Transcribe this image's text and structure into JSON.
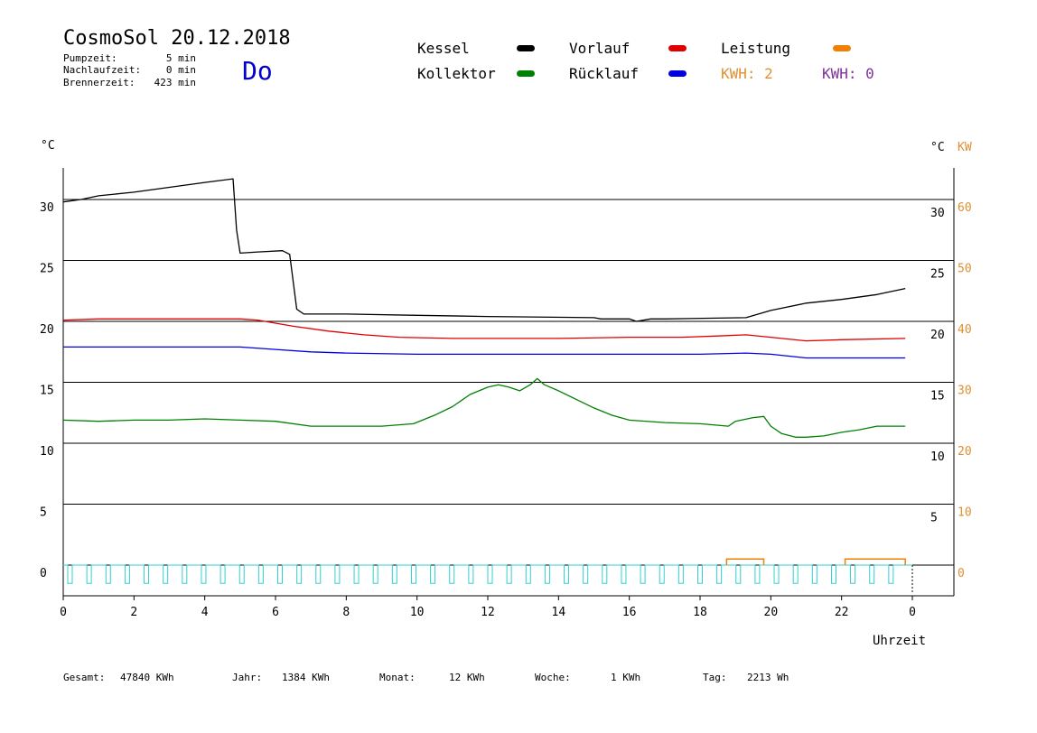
{
  "header": {
    "title": "CosmoSol 20.12.2018",
    "weekday": "Do",
    "stats": [
      {
        "label": "Pumpzeit:",
        "value": "5 min"
      },
      {
        "label": "Nachlaufzeit:",
        "value": "0 min"
      },
      {
        "label": "Brennerzeit:",
        "value": "423 min"
      }
    ]
  },
  "legend": {
    "items": [
      {
        "name": "Kessel",
        "color": "#000000"
      },
      {
        "name": "Vorlauf",
        "color": "#e00000"
      },
      {
        "name": "Leistung",
        "color": "#f08000"
      },
      {
        "name": "Kollektor",
        "color": "#008000"
      },
      {
        "name": "Rücklauf",
        "color": "#0000e0"
      }
    ],
    "kwh1": {
      "text": "KWH: 2",
      "color": "#e09030"
    },
    "kwh2": {
      "text": "KWH: 0",
      "color": "#8030a0"
    }
  },
  "chart_data": {
    "type": "line",
    "x_range": [
      0,
      24
    ],
    "x_ticks": [
      "0",
      "2",
      "4",
      "6",
      "8",
      "10",
      "12",
      "14",
      "16",
      "18",
      "20",
      "22",
      "0"
    ],
    "xlabel": "Uhrzeit",
    "y_unit_left": "°C",
    "y_unit_right": "°C",
    "y2_unit": "KW",
    "ylim": [
      -1,
      34
    ],
    "y_ticks_left": [
      "30",
      "25",
      "20",
      "15",
      "10",
      "5",
      "0"
    ],
    "y_ticks_right": [
      "30",
      "25",
      "20",
      "15",
      "10",
      "5"
    ],
    "y2_ticks": [
      "60",
      "50",
      "40",
      "30",
      "20",
      "10",
      "0"
    ],
    "grid": "horizontal",
    "series": [
      {
        "name": "Kessel",
        "color": "#000000",
        "points": [
          [
            0,
            29.8
          ],
          [
            0.5,
            30.0
          ],
          [
            1,
            30.3
          ],
          [
            2,
            30.6
          ],
          [
            3,
            31.0
          ],
          [
            4,
            31.4
          ],
          [
            4.8,
            31.7
          ],
          [
            4.9,
            27.5
          ],
          [
            5,
            25.6
          ],
          [
            5.5,
            25.7
          ],
          [
            6.2,
            25.8
          ],
          [
            6.4,
            25.5
          ],
          [
            6.6,
            21.0
          ],
          [
            6.8,
            20.6
          ],
          [
            8,
            20.6
          ],
          [
            10,
            20.5
          ],
          [
            12,
            20.4
          ],
          [
            15,
            20.3
          ],
          [
            15.2,
            20.2
          ],
          [
            16,
            20.2
          ],
          [
            16.2,
            20.0
          ],
          [
            16.6,
            20.2
          ],
          [
            17,
            20.2
          ],
          [
            19.3,
            20.3
          ],
          [
            20,
            20.9
          ],
          [
            21,
            21.5
          ],
          [
            22,
            21.8
          ],
          [
            23,
            22.2
          ],
          [
            23.8,
            22.7
          ]
        ]
      },
      {
        "name": "Vorlauf",
        "color": "#e00000",
        "points": [
          [
            0,
            20.1
          ],
          [
            1,
            20.2
          ],
          [
            2,
            20.2
          ],
          [
            3,
            20.2
          ],
          [
            4,
            20.2
          ],
          [
            5,
            20.2
          ],
          [
            5.5,
            20.1
          ],
          [
            6.5,
            19.6
          ],
          [
            7.5,
            19.2
          ],
          [
            8.5,
            18.9
          ],
          [
            9.5,
            18.7
          ],
          [
            11,
            18.6
          ],
          [
            14,
            18.6
          ],
          [
            16,
            18.7
          ],
          [
            17.5,
            18.7
          ],
          [
            18.5,
            18.8
          ],
          [
            19.3,
            18.9
          ],
          [
            20,
            18.7
          ],
          [
            21,
            18.4
          ],
          [
            22,
            18.5
          ],
          [
            23.8,
            18.6
          ]
        ]
      },
      {
        "name": "Rücklauf",
        "color": "#0000e0",
        "points": [
          [
            0,
            17.9
          ],
          [
            2,
            17.9
          ],
          [
            4,
            17.9
          ],
          [
            5,
            17.9
          ],
          [
            6,
            17.7
          ],
          [
            7,
            17.5
          ],
          [
            8,
            17.4
          ],
          [
            10,
            17.3
          ],
          [
            14,
            17.3
          ],
          [
            16,
            17.3
          ],
          [
            18,
            17.3
          ],
          [
            19.3,
            17.4
          ],
          [
            20,
            17.3
          ],
          [
            21,
            17.0
          ],
          [
            22,
            17.0
          ],
          [
            23.8,
            17.0
          ]
        ]
      },
      {
        "name": "Kollektor",
        "color": "#008000",
        "points": [
          [
            0,
            11.9
          ],
          [
            1,
            11.8
          ],
          [
            2,
            11.9
          ],
          [
            3,
            11.9
          ],
          [
            4,
            12.0
          ],
          [
            5,
            11.9
          ],
          [
            6,
            11.8
          ],
          [
            7,
            11.4
          ],
          [
            8,
            11.4
          ],
          [
            9,
            11.4
          ],
          [
            9.9,
            11.6
          ],
          [
            10.5,
            12.3
          ],
          [
            11,
            13.0
          ],
          [
            11.5,
            14.0
          ],
          [
            12,
            14.6
          ],
          [
            12.3,
            14.8
          ],
          [
            12.6,
            14.6
          ],
          [
            12.9,
            14.3
          ],
          [
            13.2,
            14.8
          ],
          [
            13.4,
            15.3
          ],
          [
            13.6,
            14.8
          ],
          [
            14,
            14.3
          ],
          [
            14.5,
            13.6
          ],
          [
            15,
            12.9
          ],
          [
            15.5,
            12.3
          ],
          [
            16,
            11.9
          ],
          [
            17,
            11.7
          ],
          [
            18,
            11.6
          ],
          [
            18.8,
            11.4
          ],
          [
            19,
            11.8
          ],
          [
            19.5,
            12.1
          ],
          [
            19.8,
            12.2
          ],
          [
            20,
            11.4
          ],
          [
            20.3,
            10.8
          ],
          [
            20.7,
            10.5
          ],
          [
            21,
            10.5
          ],
          [
            21.5,
            10.6
          ],
          [
            22,
            10.9
          ],
          [
            22.5,
            11.1
          ],
          [
            23,
            11.4
          ],
          [
            23.8,
            11.4
          ]
        ]
      }
    ],
    "kw_series": {
      "name": "Leistung",
      "color": "#f08000",
      "segments": [
        [
          18.75,
          19.8,
          0.5
        ],
        [
          22.1,
          23.8,
          0.5
        ]
      ]
    },
    "pump_series": {
      "color": "#30d0d0",
      "pulse_count": 44,
      "pulse_height": 1.5
    }
  },
  "footer": [
    {
      "label": "Gesamt:",
      "value": "47840 KWh"
    },
    {
      "label": "Jahr:",
      "value": "1384 KWh"
    },
    {
      "label": "Monat:",
      "value": "12 KWh"
    },
    {
      "label": "Woche:",
      "value": "1 KWh"
    },
    {
      "label": "Tag:",
      "value": "2213 Wh"
    }
  ]
}
